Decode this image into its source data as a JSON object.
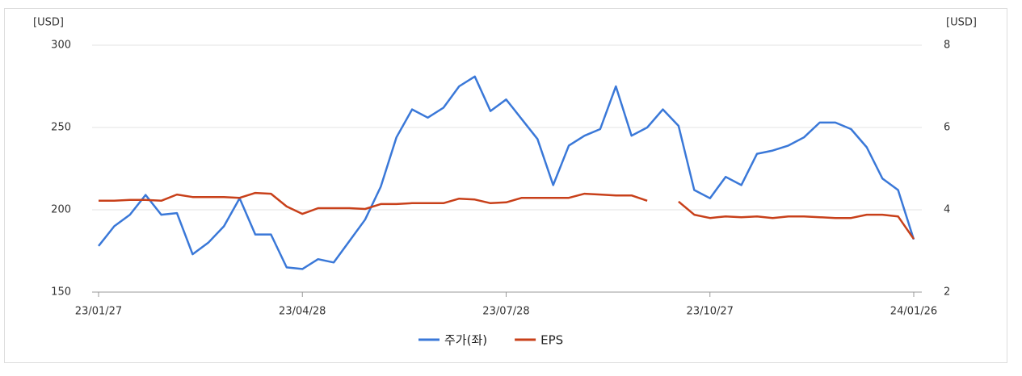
{
  "chart_data": {
    "type": "line",
    "y_unit": "[USD]",
    "y2_unit": "[USD]",
    "categories": [
      "23/01/27",
      null,
      null,
      null,
      null,
      null,
      null,
      null,
      null,
      null,
      null,
      null,
      null,
      "23/04/28",
      null,
      null,
      null,
      null,
      null,
      null,
      null,
      null,
      null,
      null,
      null,
      null,
      "23/07/28",
      null,
      null,
      null,
      null,
      null,
      null,
      null,
      null,
      null,
      null,
      null,
      null,
      "23/10/27",
      null,
      null,
      null,
      null,
      null,
      null,
      null,
      null,
      null,
      null,
      null,
      null,
      "24/01/26"
    ],
    "series": [
      {
        "name": "주가(좌)",
        "color": "#3a78d8",
        "axis": "y",
        "values": [
          178,
          190,
          197,
          209,
          197,
          198,
          173,
          180,
          190,
          207,
          185,
          185,
          165,
          164,
          170,
          168,
          181,
          194,
          214,
          244,
          261,
          256,
          262,
          275,
          281,
          260,
          267,
          255,
          243,
          215,
          239,
          245,
          249,
          275,
          245,
          250,
          261,
          251,
          212,
          207,
          220,
          215,
          234,
          236,
          239,
          244,
          253,
          253,
          249,
          238,
          219,
          212,
          182
        ]
      },
      {
        "name": "EPS",
        "color": "#c8401a",
        "axis": "y2",
        "values": [
          4.22,
          4.22,
          4.24,
          4.24,
          4.22,
          4.37,
          4.31,
          4.31,
          4.31,
          4.29,
          4.41,
          4.39,
          4.08,
          3.9,
          4.04,
          4.04,
          4.04,
          4.02,
          4.14,
          4.14,
          4.16,
          4.16,
          4.16,
          4.27,
          4.25,
          4.16,
          4.18,
          4.29,
          4.29,
          4.29,
          4.29,
          4.39,
          4.37,
          4.35,
          4.35,
          4.22,
          null,
          4.2,
          3.88,
          3.8,
          3.84,
          3.82,
          3.84,
          3.8,
          3.84,
          3.84,
          3.82,
          3.8,
          3.8,
          3.88,
          3.88,
          3.84,
          3.29
        ]
      }
    ],
    "ylim": [
      150,
      300
    ],
    "yticks": [
      150,
      200,
      250,
      300
    ],
    "y2lim": [
      2,
      8
    ],
    "y2ticks": [
      2,
      4,
      6,
      8
    ],
    "grid": true,
    "legend": "bottom"
  }
}
